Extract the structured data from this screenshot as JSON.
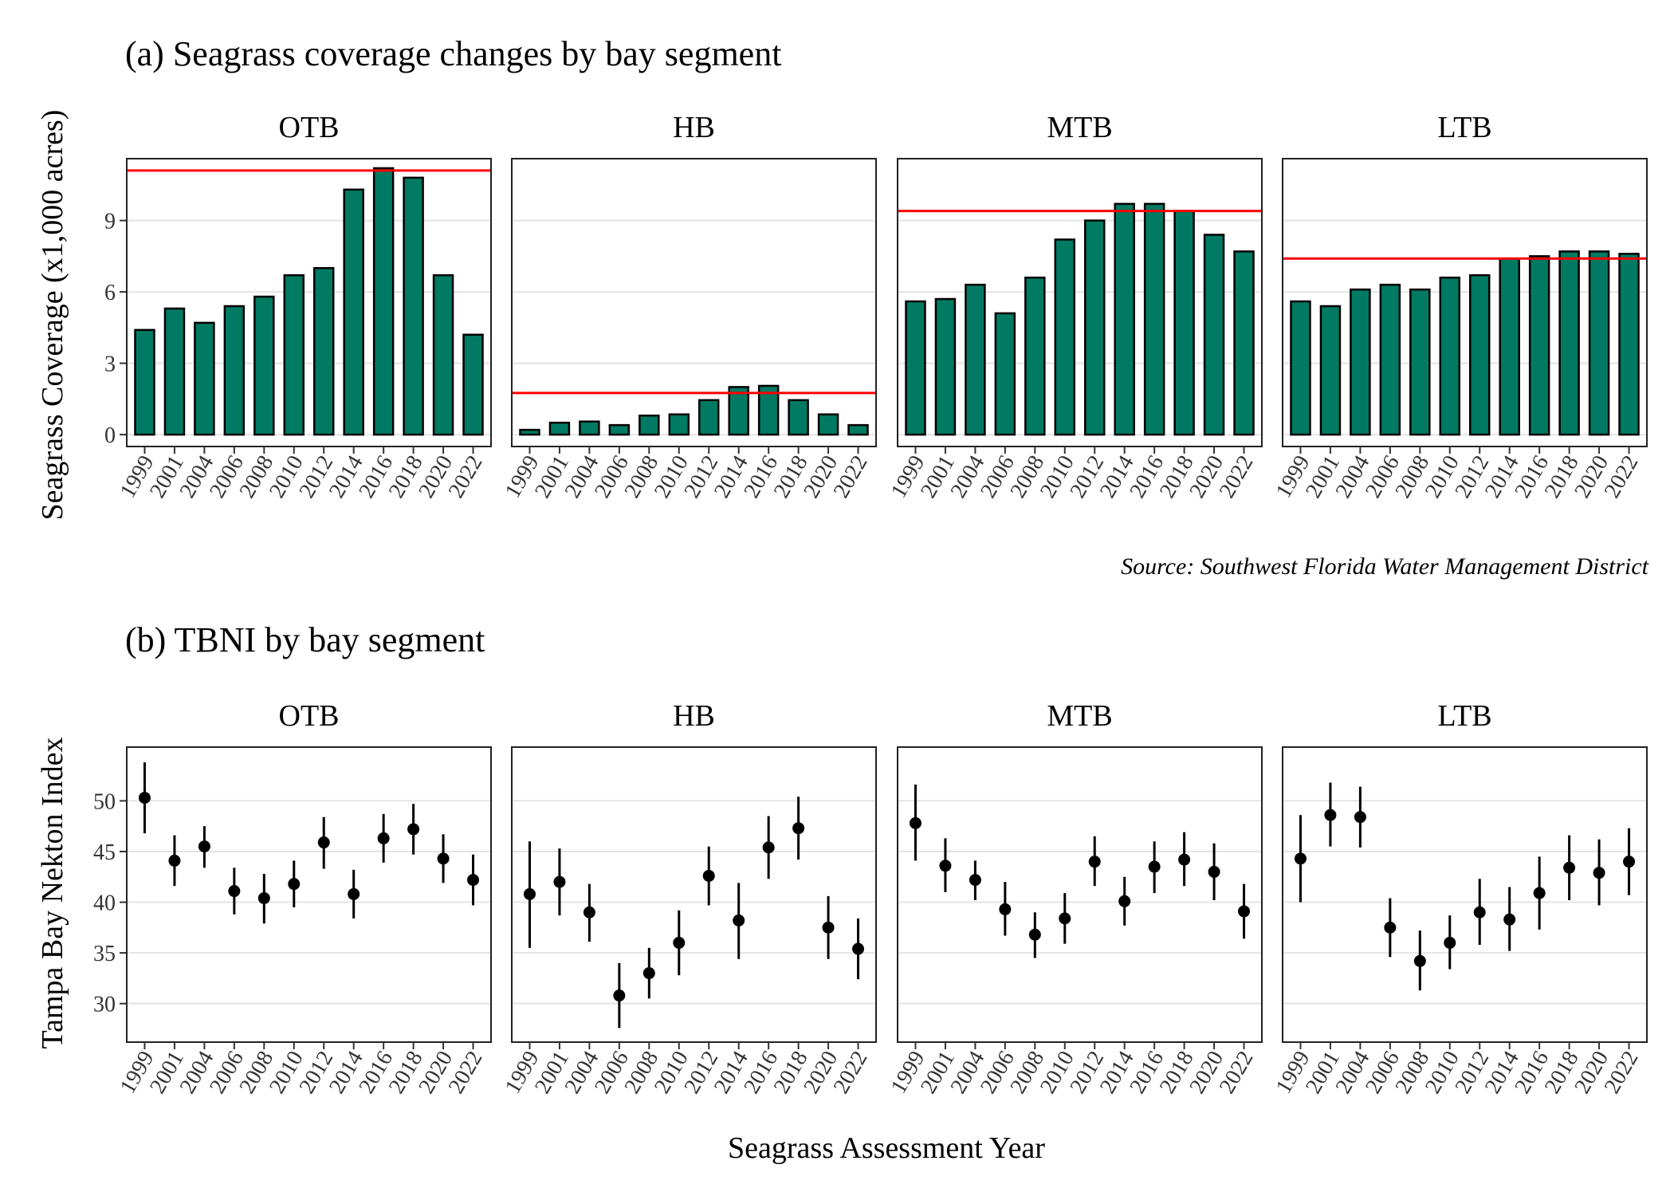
{
  "chart_data": [
    {
      "type": "bar",
      "title": "(a) Seagrass coverage changes by bay segment",
      "ylabel": "Seagrass Coverage (x1,000 acres)",
      "xlabel": "",
      "caption": "Source: Southwest Florida Water Management District",
      "years": [
        "1999",
        "2001",
        "2004",
        "2006",
        "2008",
        "2010",
        "2012",
        "2014",
        "2016",
        "2018",
        "2020",
        "2022"
      ],
      "ylim": [
        -0.5,
        11.6
      ],
      "yticks": [
        0,
        3,
        6,
        9
      ],
      "grid": true,
      "bar_color": "#007A63",
      "target_line_color": "#FF0000",
      "facets": [
        {
          "segment": "OTB",
          "target": 11.1,
          "values": [
            4.4,
            5.3,
            4.7,
            5.4,
            5.8,
            6.7,
            7.0,
            10.3,
            11.2,
            10.8,
            6.7,
            4.2
          ]
        },
        {
          "segment": "HB",
          "target": 1.75,
          "values": [
            0.2,
            0.5,
            0.55,
            0.4,
            0.8,
            0.85,
            1.45,
            2.0,
            2.05,
            1.45,
            0.85,
            0.4
          ]
        },
        {
          "segment": "MTB",
          "target": 9.4,
          "values": [
            5.6,
            5.7,
            6.3,
            5.1,
            6.6,
            8.2,
            9.0,
            9.7,
            9.7,
            9.4,
            8.4,
            7.7
          ]
        },
        {
          "segment": "LTB",
          "target": 7.4,
          "values": [
            5.6,
            5.4,
            6.1,
            6.3,
            6.1,
            6.6,
            6.7,
            7.4,
            7.5,
            7.7,
            7.7,
            7.6
          ]
        }
      ]
    },
    {
      "type": "scatter",
      "title": "(b) TBNI by bay segment",
      "ylabel": "Tampa Bay Nekton Index",
      "xlabel": "Seagrass Assessment Year",
      "years": [
        "1999",
        "2001",
        "2004",
        "2006",
        "2008",
        "2010",
        "2012",
        "2014",
        "2016",
        "2018",
        "2020",
        "2022"
      ],
      "ylim": [
        26.2,
        55.3
      ],
      "yticks": [
        30,
        35,
        40,
        45,
        50
      ],
      "grid": true,
      "point_color": "#000000",
      "facets": [
        {
          "segment": "OTB",
          "mean": [
            50.3,
            44.1,
            45.5,
            41.1,
            40.4,
            41.8,
            45.9,
            40.8,
            46.3,
            47.2,
            44.3,
            42.2
          ],
          "lower": [
            46.8,
            41.6,
            43.4,
            38.8,
            37.9,
            39.5,
            43.3,
            38.4,
            43.9,
            44.7,
            41.9,
            39.7
          ],
          "upper": [
            53.8,
            46.6,
            47.5,
            43.4,
            42.8,
            44.1,
            48.4,
            43.2,
            48.7,
            49.7,
            46.7,
            44.7
          ]
        },
        {
          "segment": "HB",
          "mean": [
            40.8,
            42.0,
            39.0,
            30.8,
            33.0,
            36.0,
            42.6,
            38.2,
            45.4,
            47.3,
            37.5,
            35.4
          ],
          "lower": [
            35.5,
            38.7,
            36.1,
            27.6,
            30.5,
            32.8,
            39.7,
            34.4,
            42.3,
            44.2,
            34.4,
            32.4
          ],
          "upper": [
            46.0,
            45.3,
            41.8,
            34.0,
            35.5,
            39.2,
            45.5,
            41.9,
            48.5,
            50.4,
            40.6,
            38.4
          ]
        },
        {
          "segment": "MTB",
          "mean": [
            47.8,
            43.6,
            42.2,
            39.3,
            36.8,
            38.4,
            44.0,
            40.1,
            43.5,
            44.2,
            43.0,
            39.1
          ],
          "lower": [
            44.1,
            41.0,
            40.2,
            36.7,
            34.5,
            35.9,
            41.6,
            37.7,
            40.9,
            41.6,
            40.2,
            36.4
          ],
          "upper": [
            51.6,
            46.3,
            44.1,
            42.0,
            39.0,
            40.9,
            46.5,
            42.5,
            46.0,
            46.9,
            45.8,
            41.8
          ]
        },
        {
          "segment": "LTB",
          "mean": [
            44.3,
            48.6,
            48.4,
            37.5,
            34.2,
            36.0,
            39.0,
            38.3,
            40.9,
            43.4,
            42.9,
            44.0
          ],
          "lower": [
            40.0,
            45.5,
            45.4,
            34.6,
            31.3,
            33.4,
            35.8,
            35.2,
            37.3,
            40.2,
            39.7,
            40.7
          ],
          "upper": [
            48.6,
            51.8,
            51.4,
            40.4,
            37.2,
            38.7,
            42.3,
            41.5,
            44.5,
            46.6,
            46.2,
            47.3
          ]
        }
      ]
    }
  ]
}
